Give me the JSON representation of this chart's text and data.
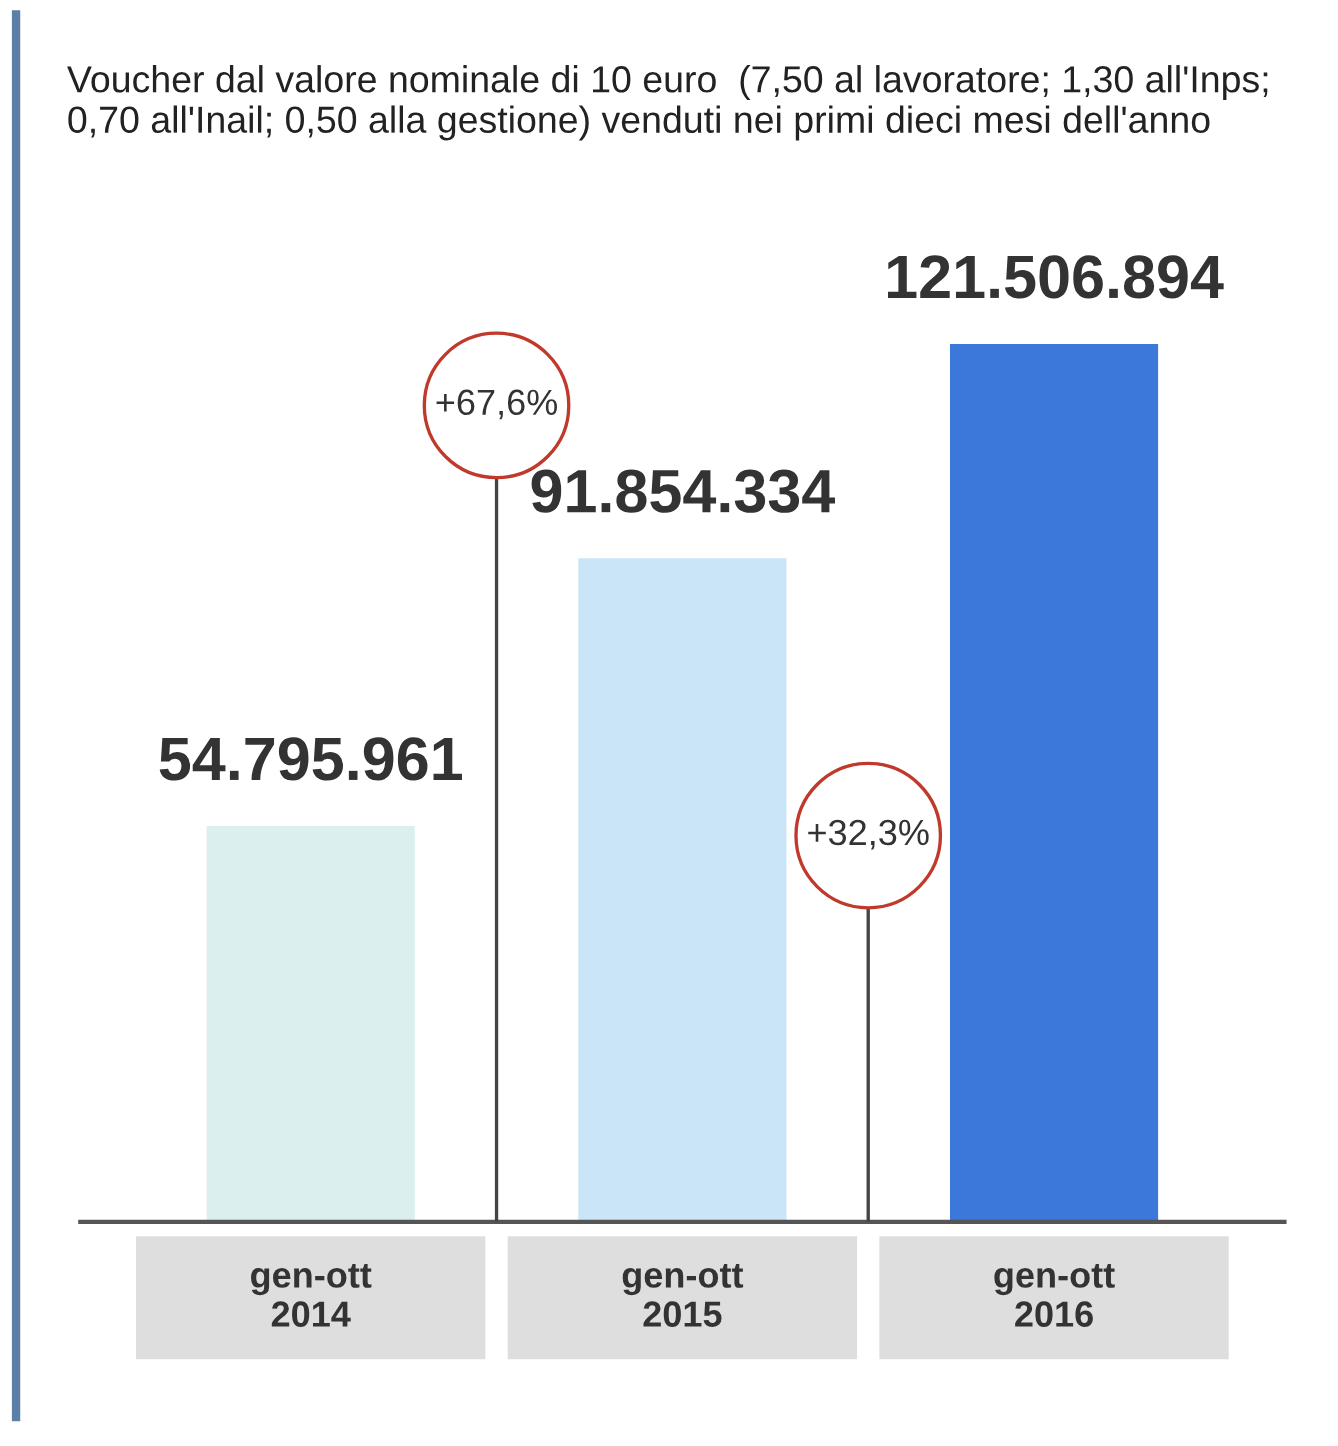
{
  "chart_data": {
    "type": "bar",
    "subtitle": "Voucher dal valore nominale di 10 euro  (7,50 al lavoratore; 1,30 all'Inps; 0,70 all'Inail; 0,50 alla gestione) venduti nei primi dieci mesi dell'anno",
    "categories": [
      "gen-ott\n2014",
      "gen-ott\n2015",
      "gen-ott\n2016"
    ],
    "values": [
      54795961,
      91854334,
      121506894
    ],
    "colors": [
      "#dcefef",
      "#c9e5f7",
      "#3b78d9"
    ],
    "value_labels": [
      "54.795.961",
      "91.854.334",
      "121.506.894"
    ],
    "annotations": [
      "+67,6%",
      "+32,3%"
    ]
  }
}
